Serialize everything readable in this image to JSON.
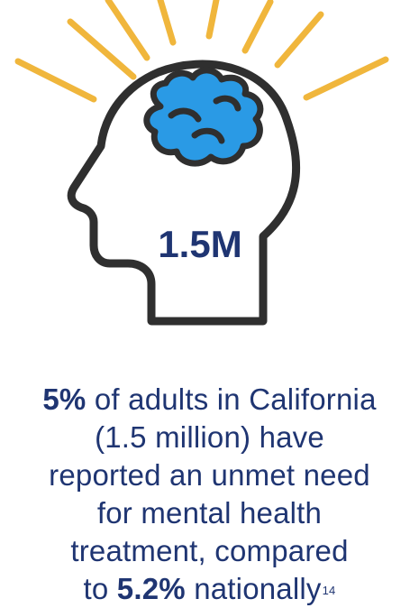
{
  "head_figure": {
    "value": "1.5M"
  },
  "statement": {
    "line1_bold": "5%",
    "line1_rest": " of adults in California",
    "line2": "(1.5 million) have",
    "line3": "reported an unmet need",
    "line4": "for mental health",
    "line5": "treatment, compared",
    "line6_prefix": "to ",
    "line6_bold": "5.2%",
    "line6_rest": " nationally",
    "footnote": "14"
  },
  "colors": {
    "rays": "#f0b63c",
    "outline": "#2f2f2f",
    "brain": "#2a9ae5",
    "text": "#1f3572"
  },
  "icons": [
    "head-outline-icon",
    "brain-icon",
    "light-rays-icon"
  ]
}
